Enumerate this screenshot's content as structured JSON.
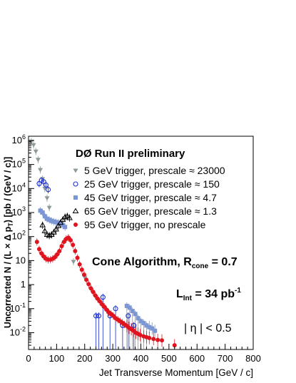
{
  "chart_data": {
    "type": "scatter",
    "title": "DØ Run II preliminary",
    "xlabel": "Jet Transverse Momentum [GeV / c]",
    "ylabel": "Uncorrected N / (L × Δ p_T) [pb / (GeV / c)]",
    "xlim": [
      0,
      800
    ],
    "ylim": [
      0.002,
      1500000
    ],
    "yscale": "log",
    "x_ticks": [
      0,
      100,
      200,
      300,
      400,
      500,
      600,
      700,
      800
    ],
    "y_ticks": [
      {
        "value": 0.01,
        "base": "10",
        "exp": "-2"
      },
      {
        "value": 0.1,
        "base": "10",
        "exp": "-1"
      },
      {
        "value": 1,
        "base": "1",
        "exp": ""
      },
      {
        "value": 10,
        "base": "10",
        "exp": ""
      },
      {
        "value": 100,
        "base": "10",
        "exp": "2"
      },
      {
        "value": 1000,
        "base": "10",
        "exp": "3"
      },
      {
        "value": 10000,
        "base": "10",
        "exp": "4"
      },
      {
        "value": 100000,
        "base": "10",
        "exp": "5"
      },
      {
        "value": 1000000,
        "base": "10",
        "exp": "6"
      }
    ],
    "legend_position": "top-right",
    "series": [
      {
        "name": "5 GeV trigger, prescale ≈ 23000",
        "marker": "triangle-down",
        "color": "#8c9a9a",
        "x": [
          10,
          18,
          26,
          34,
          42,
          50,
          58,
          66,
          74,
          160,
          200
        ],
        "y": [
          900000,
          650000,
          350000,
          160000,
          60000,
          25000,
          10000,
          4000,
          1600,
          9,
          2
        ]
      },
      {
        "name": "25 GeV trigger, prescale ≈ 150",
        "marker": "circle-open",
        "color": "#1a2fcf",
        "x": [
          38,
          46,
          54,
          62,
          70,
          240,
          250,
          265,
          290,
          310,
          335,
          355,
          375
        ],
        "y": [
          16000,
          22000,
          19000,
          14000,
          9000,
          0.05,
          0.05,
          0.3,
          0.05,
          0.1,
          0.02,
          0.05,
          0.02
        ]
      },
      {
        "name": "45 GeV trigger, prescale ≈ 4.7",
        "marker": "square",
        "color": "#7b96d4",
        "x": [
          42,
          50,
          58,
          66,
          74,
          82,
          90,
          98,
          106,
          114,
          122,
          130,
          350,
          360,
          370,
          380,
          390,
          400,
          410,
          420,
          430,
          440,
          450
        ],
        "y": [
          1200,
          1000,
          700,
          550,
          500,
          450,
          420,
          400,
          380,
          350,
          300,
          250,
          0.13,
          0.11,
          0.08,
          0.06,
          0.04,
          0.03,
          0.025,
          0.02,
          0.017,
          0.015,
          0.012
        ]
      },
      {
        "name": "65 GeV trigger, prescale ≈ 1.3",
        "marker": "triangle-up-open",
        "color": "#000000",
        "x": [
          50,
          58,
          66,
          74,
          82,
          90,
          98,
          106,
          114,
          122,
          130,
          138,
          146
        ],
        "y": [
          300,
          170,
          120,
          110,
          120,
          150,
          200,
          280,
          380,
          500,
          650,
          700,
          600
        ]
      },
      {
        "name": "95 GeV trigger, no prescale",
        "marker": "circle",
        "color": "#e0141e",
        "x": [
          30,
          38,
          46,
          54,
          62,
          70,
          78,
          86,
          94,
          102,
          110,
          118,
          126,
          134,
          142,
          150,
          158,
          166,
          174,
          182,
          190,
          198,
          206,
          214,
          222,
          230,
          238,
          246,
          254,
          262,
          270,
          278,
          286,
          294,
          302,
          310,
          318,
          326,
          334,
          342,
          350,
          358,
          366,
          374,
          382,
          390,
          398,
          410,
          420,
          430,
          445,
          460,
          475,
          520
        ],
        "y": [
          60,
          30,
          20,
          15,
          12,
          11,
          11,
          12,
          14,
          18,
          25,
          40,
          60,
          80,
          90,
          70,
          45,
          25,
          13,
          7,
          4.2,
          2.6,
          1.6,
          1.05,
          0.7,
          0.5,
          0.35,
          0.26,
          0.2,
          0.15,
          0.12,
          0.09,
          0.07,
          0.06,
          0.05,
          0.04,
          0.035,
          0.03,
          0.026,
          0.022,
          0.019,
          0.016,
          0.014,
          0.012,
          0.01,
          0.009,
          0.008,
          0.007,
          0.0065,
          0.006,
          0.0055,
          0.005,
          0.0048,
          0.003
        ]
      }
    ],
    "annotations": {
      "cone_main": "Cone Algorithm, R",
      "cone_sub": "cone",
      "cone_tail": " = 0.7",
      "lint_main": "L",
      "lint_sub": "Int",
      "lint_mid": " = 34 pb",
      "lint_sup": "-1",
      "eta": "| η | < 0.5"
    },
    "ylabel_parts": {
      "pre": "Uncorrected N / (L × Δ p",
      "sub": "T",
      "post": ") [pb / (GeV / c)]"
    }
  }
}
